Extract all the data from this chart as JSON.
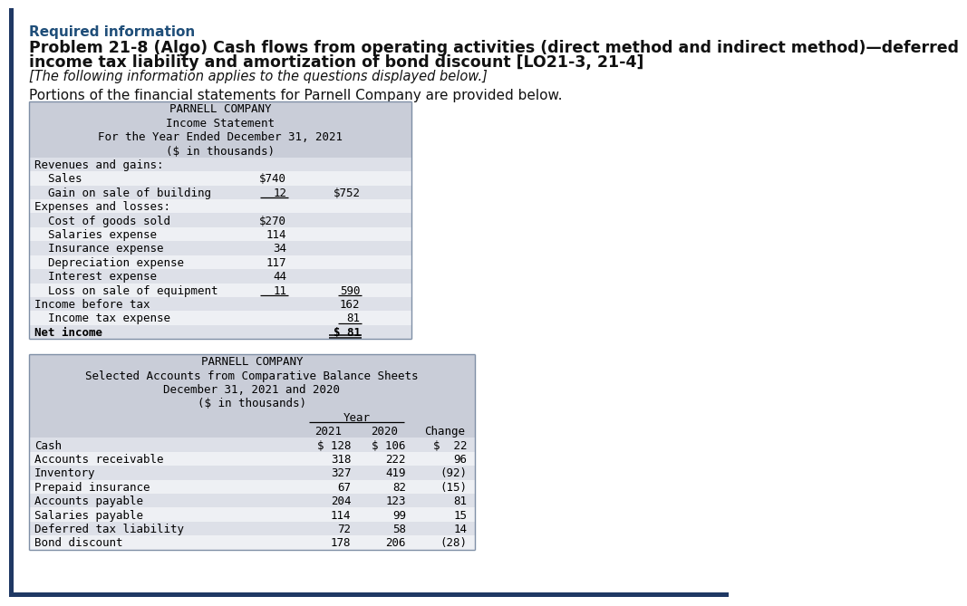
{
  "bg_color": "#ffffff",
  "accent_color": "#1f3864",
  "required_info_color": "#1f4e79",
  "table_header_bg": "#c9cdd8",
  "table_row_bg_dark": "#dde0e8",
  "table_row_bg_light": "#eef0f4",
  "table_border_color": "#7f8fa6",
  "bottom_bar_color": "#1f3864",
  "required_info_text": "Required information",
  "problem_title_line1": "Problem 21-8 (Algo) Cash flows from operating activities (direct method and indirect method)—deferred",
  "problem_title_line2": "income tax liability and amortization of bond discount [LO21-3, 21-4]",
  "italic_text": "[The following information applies to the questions displayed below.]",
  "intro_text": "Portions of the financial statements for Parnell Company are provided below.",
  "is_header": [
    "PARNELL COMPANY",
    "Income Statement",
    "For the Year Ended December 31, 2021",
    "($ in thousands)"
  ],
  "is_rows": [
    {
      "label": "Revenues and gains:",
      "col1": "",
      "col2": "",
      "bold": false,
      "indent": 0
    },
    {
      "label": "  Sales",
      "col1": "$740",
      "col2": "",
      "bold": false,
      "indent": 0
    },
    {
      "label": "  Gain on sale of building",
      "col1": "12",
      "col2": "$752",
      "bold": false,
      "indent": 0,
      "ul1": true
    },
    {
      "label": "Expenses and losses:",
      "col1": "",
      "col2": "",
      "bold": false,
      "indent": 0
    },
    {
      "label": "  Cost of goods sold",
      "col1": "$270",
      "col2": "",
      "bold": false,
      "indent": 0
    },
    {
      "label": "  Salaries expense",
      "col1": "114",
      "col2": "",
      "bold": false,
      "indent": 0
    },
    {
      "label": "  Insurance expense",
      "col1": "34",
      "col2": "",
      "bold": false,
      "indent": 0
    },
    {
      "label": "  Depreciation expense",
      "col1": "117",
      "col2": "",
      "bold": false,
      "indent": 0
    },
    {
      "label": "  Interest expense",
      "col1": "44",
      "col2": "",
      "bold": false,
      "indent": 0
    },
    {
      "label": "  Loss on sale of equipment",
      "col1": "11",
      "col2": "590",
      "bold": false,
      "indent": 0,
      "ul1": true,
      "ul2": true
    },
    {
      "label": "Income before tax",
      "col1": "",
      "col2": "162",
      "bold": false,
      "indent": 0
    },
    {
      "label": "  Income tax expense",
      "col1": "",
      "col2": "81",
      "bold": false,
      "indent": 0,
      "ul2": true
    },
    {
      "label": "Net income",
      "col1": "",
      "col2": "$ 81",
      "bold": true,
      "indent": 0,
      "dul2": true
    }
  ],
  "bs_header": [
    "PARNELL COMPANY",
    "Selected Accounts from Comparative Balance Sheets",
    "December 31, 2021 and 2020",
    "($ in thousands)"
  ],
  "bs_rows": [
    {
      "label": "Cash",
      "v2021": "$ 128",
      "v2020": "$ 106",
      "chg": "$  22"
    },
    {
      "label": "Accounts receivable",
      "v2021": "318",
      "v2020": "222",
      "chg": "96"
    },
    {
      "label": "Inventory",
      "v2021": "327",
      "v2020": "419",
      "chg": "(92)"
    },
    {
      "label": "Prepaid insurance",
      "v2021": "67",
      "v2020": "82",
      "chg": "(15)"
    },
    {
      "label": "Accounts payable",
      "v2021": "204",
      "v2020": "123",
      "chg": "81"
    },
    {
      "label": "Salaries payable",
      "v2021": "114",
      "v2020": "99",
      "chg": "15"
    },
    {
      "label": "Deferred tax liability",
      "v2021": "72",
      "v2020": "58",
      "chg": "14"
    },
    {
      "label": "Bond discount",
      "v2021": "178",
      "v2020": "206",
      "chg": "(28)"
    }
  ]
}
